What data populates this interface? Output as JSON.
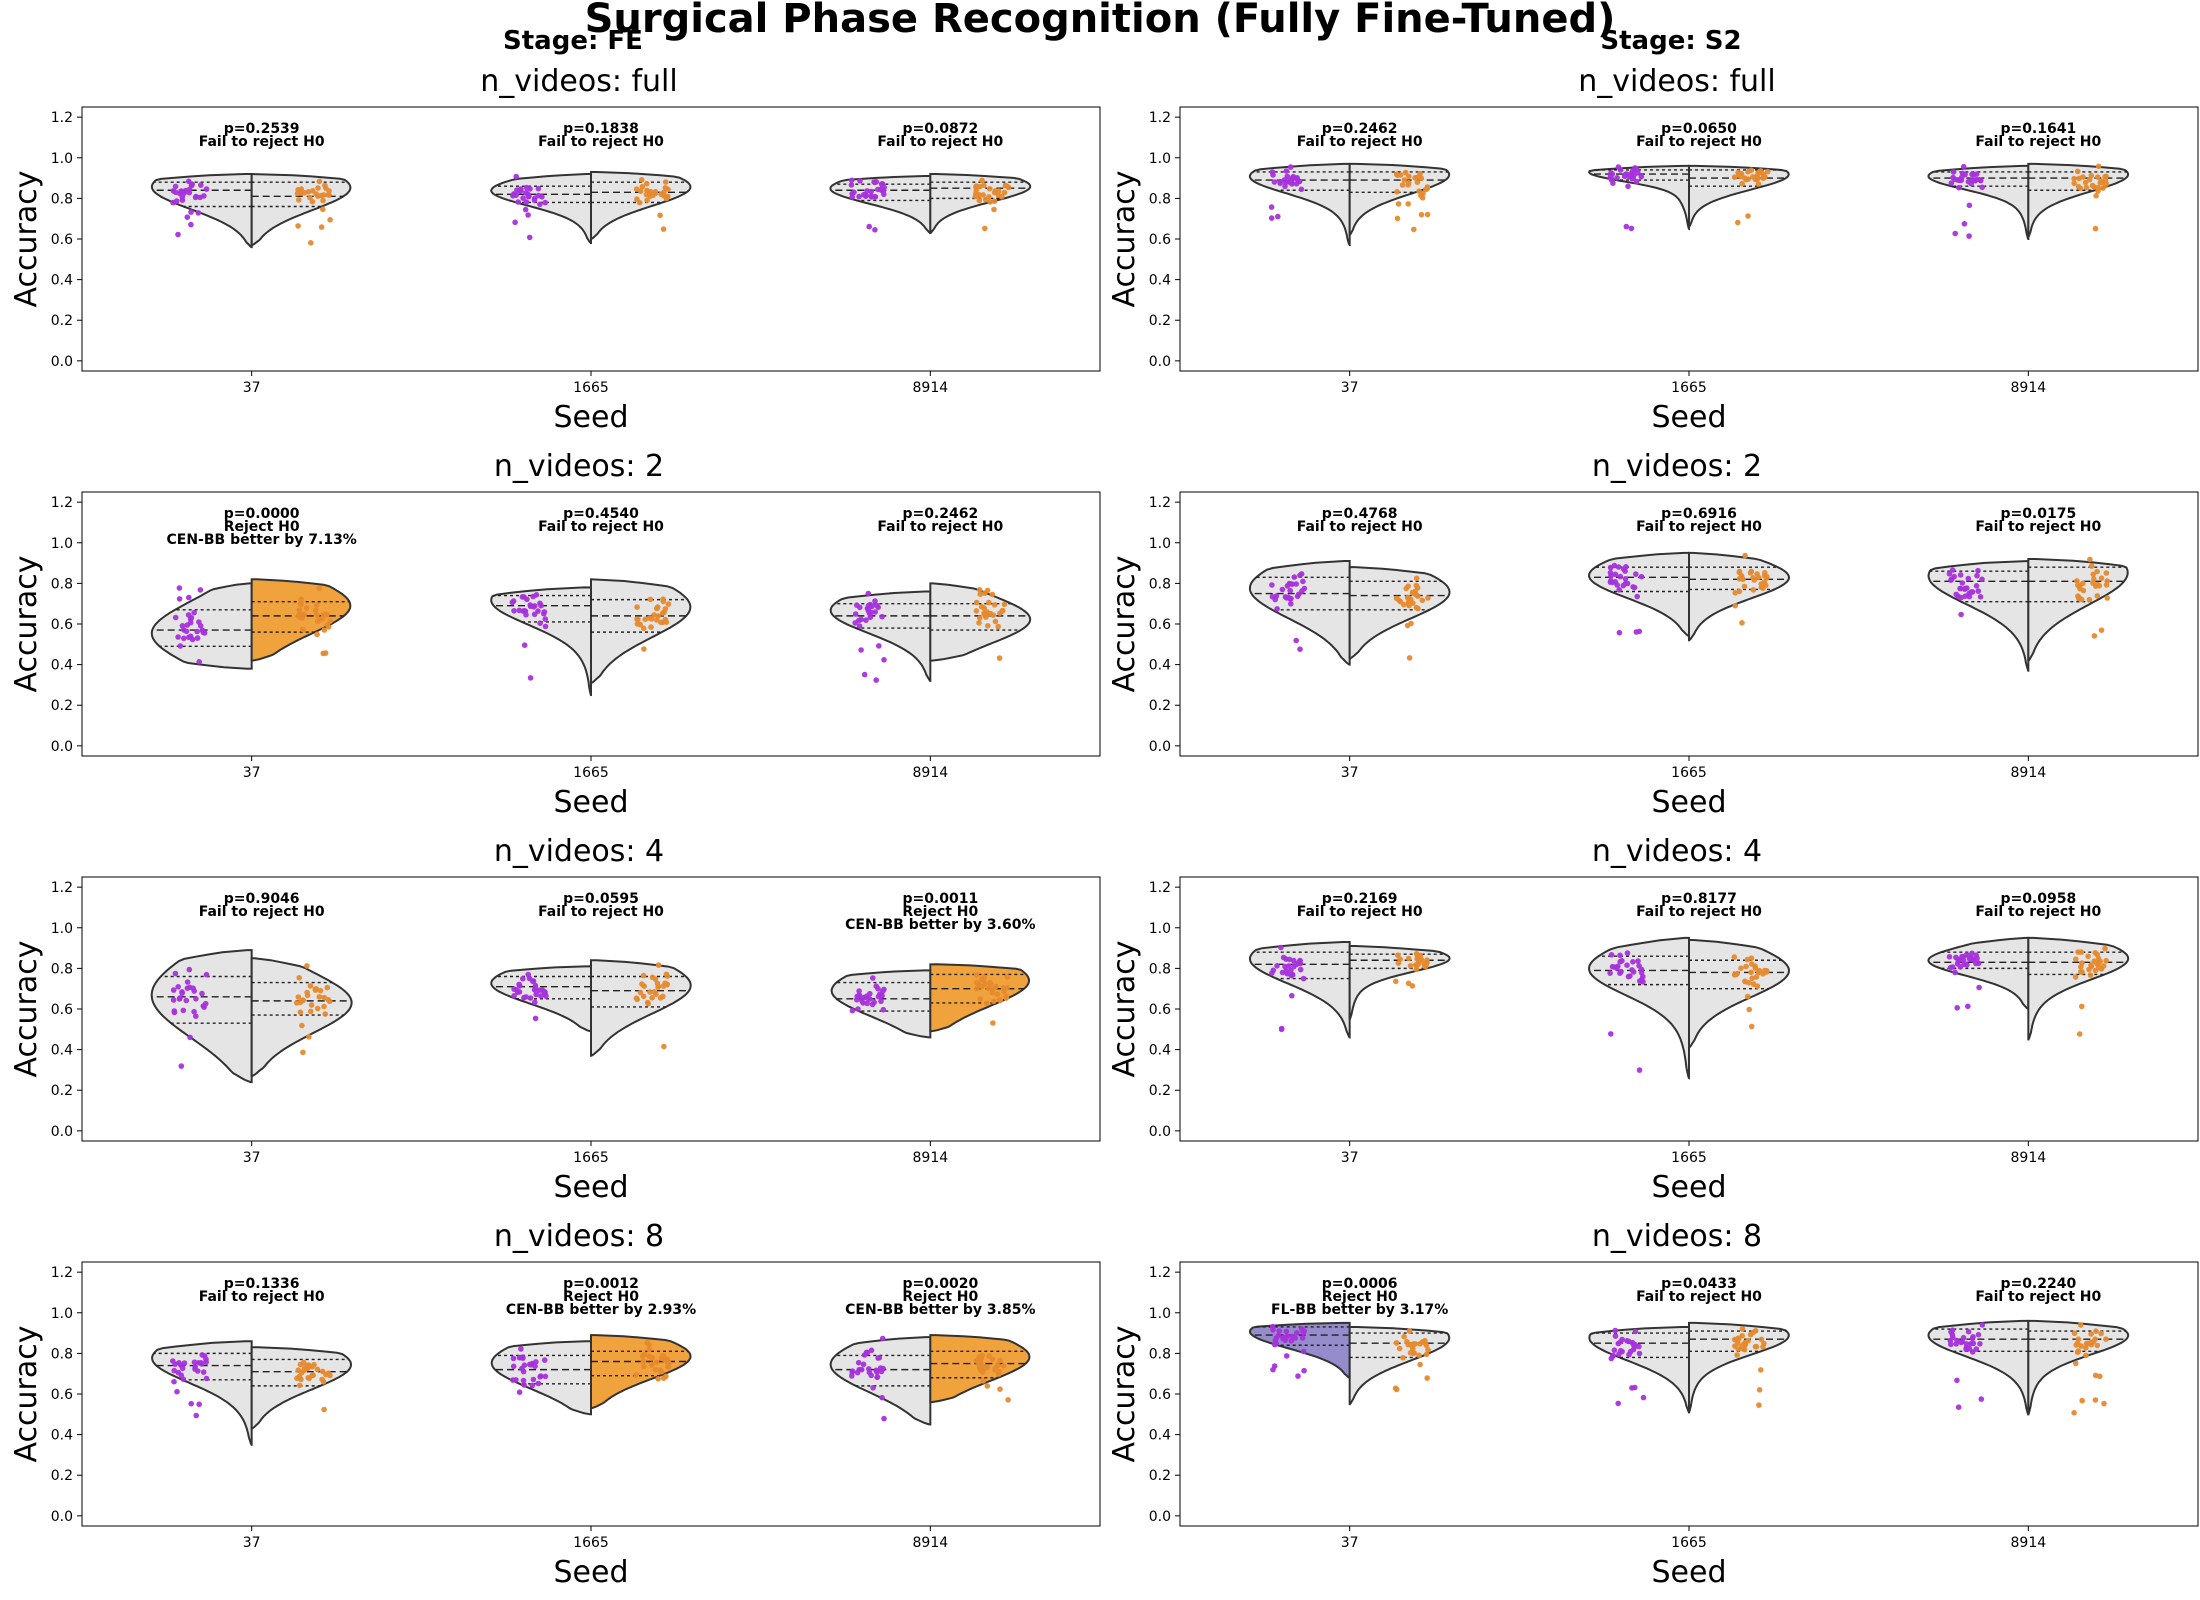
{
  "figure": {
    "title": "Surgical Phase Recognition (Fully Fine-Tuned)",
    "colors": {
      "fl_points": "#a632dc",
      "cen_points": "#e68a2e",
      "violin_fill": "#e5e5e5",
      "violin_edge": "#333333",
      "cen_better_fill": "#f0a23c",
      "fl_better_fill": "#958ccb"
    }
  },
  "chart_data": [
    {
      "type": "violin",
      "stage": "Stage: FE",
      "title": "n_videos: full",
      "xlabel": "Seed",
      "ylabel": "Accuracy",
      "ylim": [
        -0.05,
        1.25
      ],
      "yticks": [
        "0.0",
        "0.2",
        "0.4",
        "0.6",
        "0.8",
        "1.0",
        "1.2"
      ],
      "categories": [
        "37",
        "1665",
        "8914"
      ],
      "groups": [
        {
          "p": "p=0.2539",
          "decision": "Fail to reject H0",
          "note": "",
          "winner": "none",
          "left": {
            "min": 0.56,
            "max": 0.92,
            "q1": 0.76,
            "med": 0.84,
            "q3": 0.88,
            "mode": 0.86
          },
          "right": {
            "min": 0.57,
            "max": 0.92,
            "q1": 0.76,
            "med": 0.81,
            "q3": 0.88,
            "mode": 0.86
          }
        },
        {
          "p": "p=0.1838",
          "decision": "Fail to reject H0",
          "note": "",
          "winner": "none",
          "left": {
            "min": 0.58,
            "max": 0.92,
            "q1": 0.78,
            "med": 0.82,
            "q3": 0.86,
            "mode": 0.84
          },
          "right": {
            "min": 0.6,
            "max": 0.93,
            "q1": 0.78,
            "med": 0.83,
            "q3": 0.88,
            "mode": 0.86
          }
        },
        {
          "p": "p=0.0872",
          "decision": "Fail to reject H0",
          "note": "",
          "winner": "none",
          "left": {
            "min": 0.63,
            "max": 0.91,
            "q1": 0.79,
            "med": 0.84,
            "q3": 0.87,
            "mode": 0.85
          },
          "right": {
            "min": 0.63,
            "max": 0.92,
            "q1": 0.8,
            "med": 0.85,
            "q3": 0.88,
            "mode": 0.86
          }
        }
      ]
    },
    {
      "type": "violin",
      "stage": "Stage: S2",
      "title": "n_videos: full",
      "xlabel": "Seed",
      "ylabel": "Accuracy",
      "ylim": [
        -0.05,
        1.25
      ],
      "yticks": [
        "0.0",
        "0.2",
        "0.4",
        "0.6",
        "0.8",
        "1.0",
        "1.2"
      ],
      "categories": [
        "37",
        "1665",
        "8914"
      ],
      "groups": [
        {
          "p": "p=0.2462",
          "decision": "Fail to reject H0",
          "note": "",
          "winner": "none",
          "left": {
            "min": 0.57,
            "max": 0.97,
            "q1": 0.84,
            "med": 0.89,
            "q3": 0.93,
            "mode": 0.91
          },
          "right": {
            "min": 0.62,
            "max": 0.97,
            "q1": 0.83,
            "med": 0.89,
            "q3": 0.93,
            "mode": 0.92
          }
        },
        {
          "p": "p=0.0650",
          "decision": "Fail to reject H0",
          "note": "",
          "winner": "none",
          "left": {
            "min": 0.65,
            "max": 0.96,
            "q1": 0.89,
            "med": 0.92,
            "q3": 0.94,
            "mode": 0.93
          },
          "right": {
            "min": 0.66,
            "max": 0.96,
            "q1": 0.86,
            "med": 0.9,
            "q3": 0.94,
            "mode": 0.92
          }
        },
        {
          "p": "p=0.1641",
          "decision": "Fail to reject H0",
          "note": "",
          "winner": "none",
          "left": {
            "min": 0.6,
            "max": 0.96,
            "q1": 0.86,
            "med": 0.9,
            "q3": 0.93,
            "mode": 0.91
          },
          "right": {
            "min": 0.61,
            "max": 0.97,
            "q1": 0.84,
            "med": 0.9,
            "q3": 0.93,
            "mode": 0.92
          }
        }
      ]
    },
    {
      "type": "violin",
      "stage": "",
      "title": "n_videos: 2",
      "xlabel": "Seed",
      "ylabel": "Accuracy",
      "ylim": [
        -0.05,
        1.25
      ],
      "yticks": [
        "0.0",
        "0.2",
        "0.4",
        "0.6",
        "0.8",
        "1.0",
        "1.2"
      ],
      "categories": [
        "37",
        "1665",
        "8914"
      ],
      "groups": [
        {
          "p": "p=0.0000",
          "decision": "Reject H0",
          "note": "CEN-BB better by 7.13%",
          "winner": "cen",
          "left": {
            "min": 0.38,
            "max": 0.8,
            "q1": 0.49,
            "med": 0.57,
            "q3": 0.67,
            "mode": 0.55
          },
          "right": {
            "min": 0.42,
            "max": 0.82,
            "q1": 0.56,
            "med": 0.64,
            "q3": 0.71,
            "mode": 0.7
          }
        },
        {
          "p": "p=0.4540",
          "decision": "Fail to reject H0",
          "note": "",
          "winner": "none",
          "left": {
            "min": 0.25,
            "max": 0.78,
            "q1": 0.61,
            "med": 0.69,
            "q3": 0.74,
            "mode": 0.72
          },
          "right": {
            "min": 0.31,
            "max": 0.82,
            "q1": 0.56,
            "med": 0.64,
            "q3": 0.72,
            "mode": 0.69
          }
        },
        {
          "p": "p=0.2462",
          "decision": "Fail to reject H0",
          "note": "",
          "winner": "none",
          "left": {
            "min": 0.32,
            "max": 0.76,
            "q1": 0.58,
            "med": 0.64,
            "q3": 0.7,
            "mode": 0.67
          },
          "right": {
            "min": 0.42,
            "max": 0.8,
            "q1": 0.57,
            "med": 0.64,
            "q3": 0.7,
            "mode": 0.62
          }
        }
      ]
    },
    {
      "type": "violin",
      "stage": "",
      "title": "n_videos: 2",
      "xlabel": "Seed",
      "ylabel": "Accuracy",
      "ylim": [
        -0.05,
        1.25
      ],
      "yticks": [
        "0.0",
        "0.2",
        "0.4",
        "0.6",
        "0.8",
        "1.0",
        "1.2"
      ],
      "categories": [
        "37",
        "1665",
        "8914"
      ],
      "groups": [
        {
          "p": "p=0.4768",
          "decision": "Fail to reject H0",
          "note": "",
          "winner": "none",
          "left": {
            "min": 0.4,
            "max": 0.91,
            "q1": 0.67,
            "med": 0.75,
            "q3": 0.83,
            "mode": 0.78
          },
          "right": {
            "min": 0.43,
            "max": 0.88,
            "q1": 0.67,
            "med": 0.74,
            "q3": 0.81,
            "mode": 0.76
          }
        },
        {
          "p": "p=0.6916",
          "decision": "Fail to reject H0",
          "note": "",
          "winner": "none",
          "left": {
            "min": 0.54,
            "max": 0.95,
            "q1": 0.76,
            "med": 0.83,
            "q3": 0.88,
            "mode": 0.84
          },
          "right": {
            "min": 0.52,
            "max": 0.95,
            "q1": 0.77,
            "med": 0.82,
            "q3": 0.88,
            "mode": 0.83
          }
        },
        {
          "p": "p=0.0175",
          "decision": "Fail to reject H0",
          "note": "",
          "winner": "none",
          "left": {
            "min": 0.37,
            "max": 0.91,
            "q1": 0.71,
            "med": 0.81,
            "q3": 0.86,
            "mode": 0.84
          },
          "right": {
            "min": 0.42,
            "max": 0.92,
            "q1": 0.71,
            "med": 0.81,
            "q3": 0.88,
            "mode": 0.86
          }
        }
      ]
    },
    {
      "type": "violin",
      "stage": "",
      "title": "n_videos: 4",
      "xlabel": "Seed",
      "ylabel": "Accuracy",
      "ylim": [
        -0.05,
        1.25
      ],
      "yticks": [
        "0.0",
        "0.2",
        "0.4",
        "0.6",
        "0.8",
        "1.0",
        "1.2"
      ],
      "categories": [
        "37",
        "1665",
        "8914"
      ],
      "groups": [
        {
          "p": "p=0.9046",
          "decision": "Fail to reject H0",
          "note": "",
          "winner": "none",
          "left": {
            "min": 0.24,
            "max": 0.89,
            "q1": 0.53,
            "med": 0.66,
            "q3": 0.76,
            "mode": 0.67
          },
          "right": {
            "min": 0.27,
            "max": 0.85,
            "q1": 0.57,
            "med": 0.64,
            "q3": 0.73,
            "mode": 0.63
          }
        },
        {
          "p": "p=0.0595",
          "decision": "Fail to reject H0",
          "note": "",
          "winner": "none",
          "left": {
            "min": 0.49,
            "max": 0.81,
            "q1": 0.65,
            "med": 0.71,
            "q3": 0.76,
            "mode": 0.73
          },
          "right": {
            "min": 0.37,
            "max": 0.84,
            "q1": 0.61,
            "med": 0.69,
            "q3": 0.76,
            "mode": 0.72
          }
        },
        {
          "p": "p=0.0011",
          "decision": "Reject H0",
          "note": "CEN-BB better by 3.60%",
          "winner": "cen",
          "left": {
            "min": 0.46,
            "max": 0.79,
            "q1": 0.59,
            "med": 0.65,
            "q3": 0.73,
            "mode": 0.7
          },
          "right": {
            "min": 0.49,
            "max": 0.82,
            "q1": 0.63,
            "med": 0.7,
            "q3": 0.77,
            "mode": 0.75
          }
        }
      ]
    },
    {
      "type": "violin",
      "stage": "",
      "title": "n_videos: 4",
      "xlabel": "Seed",
      "ylabel": "Accuracy",
      "ylim": [
        -0.05,
        1.25
      ],
      "yticks": [
        "0.0",
        "0.2",
        "0.4",
        "0.6",
        "0.8",
        "1.0",
        "1.2"
      ],
      "categories": [
        "37",
        "1665",
        "8914"
      ],
      "groups": [
        {
          "p": "p=0.2169",
          "decision": "Fail to reject H0",
          "note": "",
          "winner": "none",
          "left": {
            "min": 0.46,
            "max": 0.93,
            "q1": 0.75,
            "med": 0.82,
            "q3": 0.88,
            "mode": 0.85
          },
          "right": {
            "min": 0.55,
            "max": 0.91,
            "q1": 0.8,
            "med": 0.84,
            "q3": 0.87,
            "mode": 0.85
          }
        },
        {
          "p": "p=0.8177",
          "decision": "Fail to reject H0",
          "note": "",
          "winner": "none",
          "left": {
            "min": 0.26,
            "max": 0.95,
            "q1": 0.72,
            "med": 0.79,
            "q3": 0.86,
            "mode": 0.8
          },
          "right": {
            "min": 0.41,
            "max": 0.94,
            "q1": 0.7,
            "med": 0.78,
            "q3": 0.84,
            "mode": 0.79
          }
        },
        {
          "p": "p=0.0958",
          "decision": "Fail to reject H0",
          "note": "",
          "winner": "none",
          "left": {
            "min": 0.6,
            "max": 0.95,
            "q1": 0.8,
            "med": 0.83,
            "q3": 0.88,
            "mode": 0.84
          },
          "right": {
            "min": 0.45,
            "max": 0.95,
            "q1": 0.77,
            "med": 0.83,
            "q3": 0.88,
            "mode": 0.85
          }
        }
      ]
    },
    {
      "type": "violin",
      "stage": "",
      "title": "n_videos: 8",
      "xlabel": "Seed",
      "ylabel": "Accuracy",
      "ylim": [
        -0.05,
        1.25
      ],
      "yticks": [
        "0.0",
        "0.2",
        "0.4",
        "0.6",
        "0.8",
        "1.0",
        "1.2"
      ],
      "categories": [
        "37",
        "1665",
        "8914"
      ],
      "groups": [
        {
          "p": "p=0.1336",
          "decision": "Fail to reject H0",
          "note": "",
          "winner": "none",
          "left": {
            "min": 0.35,
            "max": 0.86,
            "q1": 0.67,
            "med": 0.74,
            "q3": 0.8,
            "mode": 0.78
          },
          "right": {
            "min": 0.43,
            "max": 0.83,
            "q1": 0.64,
            "med": 0.71,
            "q3": 0.77,
            "mode": 0.75
          }
        },
        {
          "p": "p=0.0012",
          "decision": "Reject H0",
          "note": "CEN-BB better by 2.93%",
          "winner": "cen",
          "left": {
            "min": 0.5,
            "max": 0.86,
            "q1": 0.65,
            "med": 0.72,
            "q3": 0.79,
            "mode": 0.76
          },
          "right": {
            "min": 0.53,
            "max": 0.89,
            "q1": 0.69,
            "med": 0.76,
            "q3": 0.81,
            "mode": 0.79
          }
        },
        {
          "p": "p=0.0020",
          "decision": "Reject H0",
          "note": "CEN-BB better by 3.85%",
          "winner": "cen",
          "left": {
            "min": 0.45,
            "max": 0.88,
            "q1": 0.64,
            "med": 0.72,
            "q3": 0.79,
            "mode": 0.75
          },
          "right": {
            "min": 0.56,
            "max": 0.89,
            "q1": 0.68,
            "med": 0.75,
            "q3": 0.81,
            "mode": 0.79
          }
        }
      ]
    },
    {
      "type": "violin",
      "stage": "",
      "title": "n_videos: 8",
      "xlabel": "Seed",
      "ylabel": "Accuracy",
      "ylim": [
        -0.05,
        1.25
      ],
      "yticks": [
        "0.0",
        "0.2",
        "0.4",
        "0.6",
        "0.8",
        "1.0",
        "1.2"
      ],
      "categories": [
        "37",
        "1665",
        "8914"
      ],
      "groups": [
        {
          "p": "p=0.0006",
          "decision": "Reject H0",
          "note": "FL-BB better by 3.17%",
          "winner": "fl",
          "left": {
            "min": 0.68,
            "max": 0.95,
            "q1": 0.84,
            "med": 0.89,
            "q3": 0.93,
            "mode": 0.91
          },
          "right": {
            "min": 0.55,
            "max": 0.93,
            "q1": 0.78,
            "med": 0.85,
            "q3": 0.9,
            "mode": 0.88
          }
        },
        {
          "p": "p=0.0433",
          "decision": "Fail to reject H0",
          "note": "",
          "winner": "none",
          "left": {
            "min": 0.51,
            "max": 0.93,
            "q1": 0.78,
            "med": 0.85,
            "q3": 0.9,
            "mode": 0.88
          },
          "right": {
            "min": 0.51,
            "max": 0.95,
            "q1": 0.81,
            "med": 0.87,
            "q3": 0.91,
            "mode": 0.89
          }
        },
        {
          "p": "p=0.2240",
          "decision": "Fail to reject H0",
          "note": "",
          "winner": "none",
          "left": {
            "min": 0.5,
            "max": 0.96,
            "q1": 0.81,
            "med": 0.87,
            "q3": 0.92,
            "mode": 0.89
          },
          "right": {
            "min": 0.5,
            "max": 0.96,
            "q1": 0.81,
            "med": 0.87,
            "q3": 0.91,
            "mode": 0.89
          }
        }
      ]
    }
  ]
}
